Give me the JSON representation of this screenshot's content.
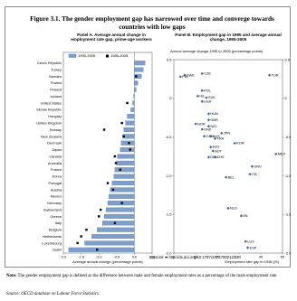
{
  "figure": {
    "number": "Figure 3.1.",
    "title": "The gender employment gap has narrowed over time and converge towards countries with low gaps"
  },
  "chart_data": [
    {
      "type": "bar",
      "title": "Panel A. Average annual change in employment rate gap, prime-age workers",
      "xlabel": "Average annual change (percentage points)",
      "xlim": [
        -2.0,
        0.5
      ],
      "xticks": [
        "-2.0",
        "-1.5",
        "-1.0",
        "-0.5",
        "0.0",
        "0.5"
      ],
      "legend": [
        "1995-2005",
        "1985-2005"
      ],
      "colors": {
        "bar": "#7f9fca",
        "bar_edge": "#4a6ea5",
        "dot": "#000000"
      },
      "categories": [
        "Czech Republic",
        "Turkey",
        "Sweden",
        "Poland",
        "Finland",
        "Iceland",
        "United States",
        "Slovak Republic",
        "Hungary",
        "United Kingdom",
        "Norway",
        "New Zealand",
        "Denmark",
        "Japan",
        "Canada",
        "Australia",
        "France",
        "Korea",
        "Portugal",
        "Austria",
        "Mexico",
        "Germany",
        "Switzerland",
        "Greece",
        "Italy",
        "Belgium",
        "Netherlands",
        "Luxembourg",
        "Spain"
      ],
      "series": [
        {
          "name": "1995-2005",
          "values": [
            0.3,
            0.25,
            0.2,
            0.1,
            0.05,
            -0.02,
            -0.05,
            -0.1,
            -0.2,
            -0.25,
            -0.3,
            -0.33,
            -0.37,
            -0.4,
            -0.48,
            -0.5,
            -0.55,
            -0.58,
            -0.63,
            -0.68,
            -0.72,
            -0.75,
            -0.8,
            -0.85,
            -0.9,
            -1.05,
            -1.2,
            -1.4,
            -1.85
          ]
        },
        {
          "name": "1985-2005",
          "values": [
            null,
            null,
            0.05,
            null,
            null,
            null,
            -0.2,
            null,
            null,
            -0.35,
            -0.85,
            -0.3,
            -0.15,
            -0.12,
            -0.55,
            -0.52,
            -0.4,
            null,
            -0.75,
            -0.6,
            null,
            -0.35,
            -0.95,
            -1.0,
            -0.55,
            -1.35,
            -1.5,
            -1.6,
            -1.05
          ]
        }
      ]
    },
    {
      "type": "scatter",
      "title": "Panel B. Employment gap in 1995 and average annual change, 1995-2005",
      "ylabel": "Annual average change 1995 to 2005 (percentage points)",
      "xlabel": "Employment rate gap in 1995 (%)",
      "xlim": [
        0,
        50
      ],
      "ylim": [
        -2.0,
        0.5
      ],
      "xticks": [
        "0",
        "10",
        "20",
        "30",
        "40",
        "50"
      ],
      "yticks": [
        "0.5",
        "0",
        "-0.5",
        "-1.0",
        "-1.5",
        "-2.0"
      ],
      "points": [
        {
          "label": "FIN",
          "x": 3,
          "y": 0.28
        },
        {
          "label": "SWE",
          "x": 5,
          "y": 0.3
        },
        {
          "label": "CZE",
          "x": 13,
          "y": 0.32
        },
        {
          "label": "TUR",
          "x": 44,
          "y": 0.3
        },
        {
          "label": "POL",
          "x": 13,
          "y": 0.1
        },
        {
          "label": "ISL",
          "x": 11,
          "y": 0.03
        },
        {
          "label": "SVK",
          "x": 15,
          "y": 0.01
        },
        {
          "label": "USA",
          "x": 13,
          "y": -0.04
        },
        {
          "label": "HUN",
          "x": 16,
          "y": -0.2
        },
        {
          "label": "GBR",
          "x": 16,
          "y": -0.28
        },
        {
          "label": "NOR",
          "x": 10,
          "y": -0.33
        },
        {
          "label": "NZL",
          "x": 16,
          "y": -0.36
        },
        {
          "label": "DNK",
          "x": 13,
          "y": -0.4
        },
        {
          "label": "JPN",
          "x": 22,
          "y": -0.45
        },
        {
          "label": "CAN",
          "x": 14,
          "y": -0.49
        },
        {
          "label": "AUS",
          "x": 17,
          "y": -0.49
        },
        {
          "label": "FRA",
          "x": 19,
          "y": -0.52
        },
        {
          "label": "KOR",
          "x": 28,
          "y": -0.58
        },
        {
          "label": "PRT",
          "x": 17,
          "y": -0.63
        },
        {
          "label": "AUT",
          "x": 18,
          "y": -0.68
        },
        {
          "label": "MEX",
          "x": 47,
          "y": -0.72
        },
        {
          "label": "DEU",
          "x": 16,
          "y": -0.76
        },
        {
          "label": "CHE",
          "x": 19,
          "y": -0.76
        },
        {
          "label": "GRC",
          "x": 36,
          "y": -0.88
        },
        {
          "label": "ITA",
          "x": 35,
          "y": -0.98
        },
        {
          "label": "BEL",
          "x": 24,
          "y": -1.02
        },
        {
          "label": "NLD",
          "x": 25,
          "y": -1.42
        },
        {
          "label": "IRL",
          "x": 31,
          "y": -1.52
        },
        {
          "label": "LUX",
          "x": 33,
          "y": -1.85
        },
        {
          "label": "ESP",
          "x": 34,
          "y": -1.93
        }
      ]
    }
  ],
  "statlink": {
    "prefix": "StatLink",
    "url": "http://dx.doi.org/10.1787/347479021230"
  },
  "note": {
    "label": "Note:",
    "text": "The gender employment gap is defined as the difference between male and female employment rates as a percentage of the male employment rate."
  },
  "source": {
    "label": "Source:",
    "text": "OECD database on Labour Force Statistics."
  }
}
